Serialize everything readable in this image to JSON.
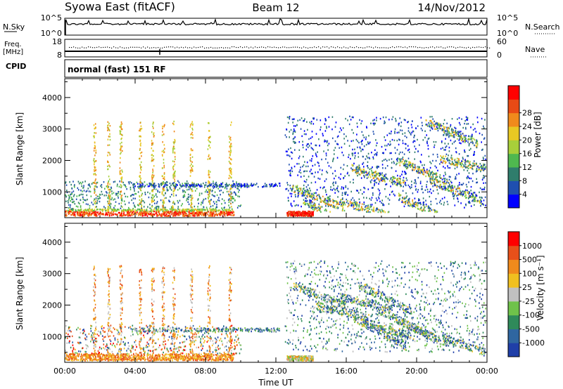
{
  "header": {
    "station": "Syowa East (fitACF)",
    "beam": "Beam 12",
    "date": "14/Nov/2012"
  },
  "panels": {
    "nsky": {
      "label": "N.Sky",
      "right_label": "N.Search",
      "y_ticks_left": [
        "10^5",
        "10^0"
      ],
      "y_ticks_right": [
        "10^5",
        "10^0"
      ]
    },
    "freq": {
      "label_top": "Freq.",
      "label_unit": "[MHz]",
      "cpid_label": "CPID",
      "right_label": "Nave",
      "y_ticks_left": [
        "18",
        "8"
      ],
      "y_ticks_right": [
        "60",
        "0"
      ]
    },
    "cpid_text": "normal (fast) 151 RF"
  },
  "chart_data": [
    {
      "type": "heatmap",
      "name": "power",
      "ylabel": "Slant Range [km]",
      "y_ticks": [
        "1000",
        "2000",
        "3000",
        "4000"
      ],
      "ylim": [
        180,
        4600
      ],
      "x_ticks": [
        "00:00",
        "04:00",
        "08:00",
        "12:00",
        "16:00",
        "20:00",
        "00:00"
      ],
      "xlim": [
        0,
        24
      ],
      "colorbar": {
        "label": "Power [dB]",
        "ticks": [
          "4",
          "8",
          "12",
          "16",
          "20",
          "24",
          "28"
        ],
        "colors": [
          "#0000ff",
          "#1f4fb0",
          "#2f7d6c",
          "#4fb84f",
          "#a8cf3a",
          "#e8c823",
          "#f08a1c",
          "#e84a15",
          "#ff0000"
        ]
      }
    },
    {
      "type": "heatmap",
      "name": "velocity",
      "ylabel": "Slant Range [km]",
      "y_ticks": [
        "1000",
        "2000",
        "3000",
        "4000"
      ],
      "ylim": [
        180,
        4600
      ],
      "x_ticks": [
        "00:00",
        "04:00",
        "08:00",
        "12:00",
        "16:00",
        "20:00",
        "00:00"
      ],
      "xlim": [
        0,
        24
      ],
      "xlabel": "Time UT",
      "colorbar": {
        "label": "Velocity [m s⁻¹]",
        "ticks": [
          "1000",
          "500",
          "100",
          "25",
          "-25",
          "-100",
          "-500",
          "-1000"
        ],
        "colors": [
          "#1f3fa8",
          "#2f66a0",
          "#2f8a5a",
          "#6fc24a",
          "#c0c0c0",
          "#f0c020",
          "#f08a1c",
          "#e8501a",
          "#ff0000"
        ]
      }
    }
  ]
}
